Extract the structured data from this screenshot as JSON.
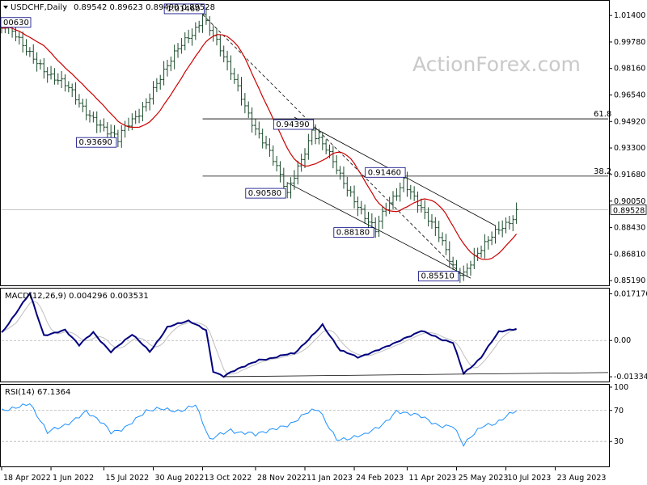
{
  "chart_data": {
    "type": "candlestick",
    "main_panel": {
      "header": {
        "symbol": "USDCHF,Daily",
        "ohlc": "0.89542 0.89623 0.89490 0.89528"
      },
      "watermark": "ActionForex.com",
      "y_ticks": [
        "1.01400",
        "0.99780",
        "0.98160",
        "0.96540",
        "0.94920",
        "0.93300",
        "0.91680",
        "0.90050",
        "0.88430",
        "0.86810",
        "0.85190"
      ],
      "y_tick_values": [
        1.014,
        0.9978,
        0.9816,
        0.9654,
        0.9492,
        0.933,
        0.9168,
        0.9005,
        0.8843,
        0.8681,
        0.8519
      ],
      "ylim": [
        0.8495,
        1.0215
      ],
      "current_price": {
        "label": "0.89528",
        "value": 0.89528
      },
      "key_points": [
        {
          "label": "00630",
          "x": 1,
          "y": 1.0063
        },
        {
          "label": "0.93690",
          "x": 33,
          "y": 0.9369
        },
        {
          "label": "1.01460",
          "x": 57,
          "y": 1.0146
        },
        {
          "label": "0.90580",
          "x": 81,
          "y": 0.9058
        },
        {
          "label": "0.94390",
          "x": 88,
          "y": 0.9439
        },
        {
          "label": "0.88180",
          "x": 106,
          "y": 0.8818
        },
        {
          "label": "0.91460",
          "x": 114,
          "y": 0.9146
        },
        {
          "label": "0.85510",
          "x": 130,
          "y": 0.8551
        },
        {
          "label": "",
          "x": 146,
          "y": 0.8953
        }
      ],
      "fib_levels": [
        {
          "label": "61.8",
          "value": 0.9508
        },
        {
          "label": "38.2",
          "value": 0.9158
        }
      ]
    },
    "macd_panel": {
      "header": "MACD(12,26,9) 0.004296 0.003531",
      "y_ticks": [
        "0.017176",
        "0.00",
        "-0.01334"
      ],
      "y_tick_values": [
        0.017176,
        0,
        -0.01334
      ],
      "ylim": [
        -0.0148,
        0.0188
      ],
      "key_points": [
        {
          "x": 0,
          "y": 0.003
        },
        {
          "x": 8,
          "y": 0.017
        },
        {
          "x": 12,
          "y": 0.002
        },
        {
          "x": 18,
          "y": 0.004
        },
        {
          "x": 22,
          "y": -0.002
        },
        {
          "x": 26,
          "y": 0.003
        },
        {
          "x": 31,
          "y": -0.004
        },
        {
          "x": 37,
          "y": 0.002
        },
        {
          "x": 42,
          "y": -0.004
        },
        {
          "x": 47,
          "y": 0.005
        },
        {
          "x": 53,
          "y": 0.007
        },
        {
          "x": 58,
          "y": 0.004
        },
        {
          "x": 60,
          "y": -0.011
        },
        {
          "x": 63,
          "y": -0.0132
        },
        {
          "x": 73,
          "y": -0.007
        },
        {
          "x": 83,
          "y": -0.005
        },
        {
          "x": 91,
          "y": 0.006
        },
        {
          "x": 96,
          "y": -0.004
        },
        {
          "x": 101,
          "y": -0.006
        },
        {
          "x": 112,
          "y": -0.001
        },
        {
          "x": 119,
          "y": 0.004
        },
        {
          "x": 125,
          "y": 0.0
        },
        {
          "x": 128,
          "y": -0.001
        },
        {
          "x": 131,
          "y": -0.012
        },
        {
          "x": 136,
          "y": -0.006
        },
        {
          "x": 141,
          "y": 0.003
        },
        {
          "x": 146,
          "y": 0.0043
        }
      ]
    },
    "rsi_panel": {
      "header": "RSI(14) 67.1364",
      "y_ticks": [
        "100",
        "70",
        "30",
        "0"
      ],
      "y_tick_values": [
        100,
        70,
        30,
        0
      ],
      "ylim": [
        0,
        100
      ],
      "key_points": [
        {
          "x": 0,
          "y": 68
        },
        {
          "x": 8,
          "y": 82
        },
        {
          "x": 13,
          "y": 38
        },
        {
          "x": 24,
          "y": 70
        },
        {
          "x": 31,
          "y": 40
        },
        {
          "x": 41,
          "y": 68
        },
        {
          "x": 46,
          "y": 70
        },
        {
          "x": 55,
          "y": 76
        },
        {
          "x": 59,
          "y": 30
        },
        {
          "x": 65,
          "y": 48
        },
        {
          "x": 72,
          "y": 36
        },
        {
          "x": 80,
          "y": 52
        },
        {
          "x": 90,
          "y": 70
        },
        {
          "x": 95,
          "y": 35
        },
        {
          "x": 103,
          "y": 35
        },
        {
          "x": 112,
          "y": 70
        },
        {
          "x": 120,
          "y": 58
        },
        {
          "x": 128,
          "y": 50
        },
        {
          "x": 131,
          "y": 24
        },
        {
          "x": 137,
          "y": 52
        },
        {
          "x": 146,
          "y": 67.1
        }
      ]
    },
    "x_ticks": [
      {
        "label": "18 Apr 2022",
        "x": 0
      },
      {
        "label": "1 Jun 2022",
        "x": 14
      },
      {
        "label": "15 Jul 2022",
        "x": 29
      },
      {
        "label": "30 Aug 2022",
        "x": 43
      },
      {
        "label": "13 Oct 2022",
        "x": 57
      },
      {
        "label": "28 Nov 2022",
        "x": 72
      },
      {
        "label": "11 Jan 2023",
        "x": 86
      },
      {
        "label": "24 Feb 2023",
        "x": 100
      },
      {
        "label": "11 Apr 2023",
        "x": 115
      },
      {
        "label": "25 May 2023",
        "x": 129
      },
      {
        "label": "10 Jul 2023",
        "x": 143
      },
      {
        "label": "23 Aug 2023",
        "x": 157
      }
    ],
    "xlim": [
      0,
      172
    ],
    "colors": {
      "candle": "#1a4a2a",
      "ma": "#cc0000",
      "macd": "#000080",
      "signal": "#c0c0c0",
      "rsi": "#1e90ff",
      "trend": "#000000",
      "grid": "#b0b0b0",
      "label_border": "#000080"
    }
  }
}
